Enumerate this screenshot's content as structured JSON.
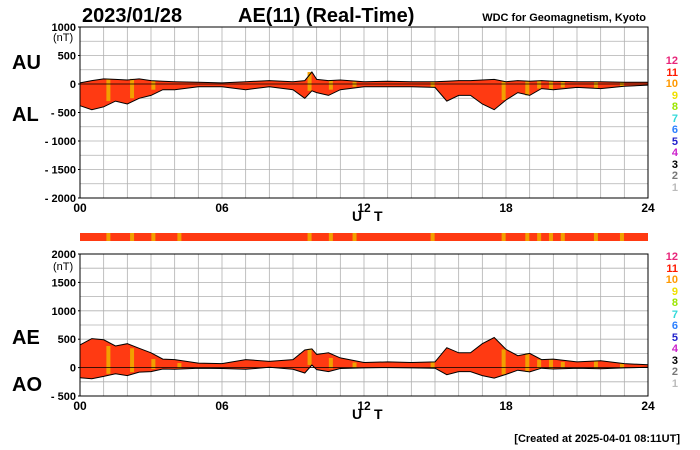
{
  "header": {
    "date": "2023/01/28",
    "title": "AE(11) (Real-Time)",
    "organization": "WDC for Geomagnetism, Kyoto",
    "created": "[Created at 2025-04-01 08:11UT]"
  },
  "labels": {
    "au": "AU",
    "al": "AL",
    "ae": "AE",
    "ao": "AO",
    "unit": "(nT)",
    "xlabel": "U T"
  },
  "legend": [
    {
      "label": "12",
      "color": "#e8267a"
    },
    {
      "label": "11",
      "color": "#ff1a00"
    },
    {
      "label": "10",
      "color": "#ff9900"
    },
    {
      "label": "9",
      "color": "#f0e000"
    },
    {
      "label": "8",
      "color": "#9be600"
    },
    {
      "label": "7",
      "color": "#33d9d9"
    },
    {
      "label": "6",
      "color": "#2a7fff"
    },
    {
      "label": "5",
      "color": "#2222cc"
    },
    {
      "label": "4",
      "color": "#cc22cc"
    },
    {
      "label": "3",
      "color": "#000000"
    },
    {
      "label": "2",
      "color": "#777777"
    },
    {
      "label": "1",
      "color": "#bbbbbb"
    }
  ],
  "colors": {
    "fill_main": "#ff3a12",
    "fill_low": "#f2a000",
    "grid": "#b0b0b0",
    "line": "#000000"
  },
  "chart_data": [
    {
      "type": "area",
      "title": "AU / AL",
      "xlabel": "U T",
      "ylabel": "(nT)",
      "xlim": [
        0,
        24
      ],
      "ylim": [
        -2000,
        1000
      ],
      "xticks": [
        "00",
        "06",
        "12",
        "18",
        "24"
      ],
      "yticks": [
        "1000",
        "500",
        "0",
        "- 500",
        "- 1000",
        "- 1500",
        "- 2000"
      ],
      "ytick_values": [
        1000,
        500,
        0,
        -500,
        -1000,
        -1500,
        -2000
      ],
      "series": [
        {
          "name": "AU",
          "x": [
            0,
            0.5,
            1,
            1.5,
            2,
            2.5,
            3,
            3.5,
            4,
            5,
            6,
            7,
            8,
            9,
            9.5,
            9.8,
            10,
            10.5,
            11,
            12,
            13,
            14,
            15,
            15.5,
            16,
            16.5,
            17,
            17.5,
            18,
            18.5,
            19,
            19.5,
            20,
            21,
            22,
            23,
            24
          ],
          "values": [
            20,
            60,
            90,
            80,
            70,
            90,
            60,
            50,
            40,
            30,
            20,
            40,
            60,
            40,
            60,
            210,
            80,
            60,
            70,
            40,
            50,
            40,
            40,
            50,
            60,
            60,
            70,
            80,
            40,
            60,
            50,
            60,
            50,
            40,
            40,
            30,
            30
          ]
        },
        {
          "name": "AL",
          "x": [
            0,
            0.5,
            1,
            1.5,
            2,
            2.5,
            3,
            3.5,
            4,
            5,
            6,
            7,
            8,
            9,
            9.5,
            9.8,
            10,
            10.5,
            11,
            12,
            13,
            14,
            15,
            15.5,
            16,
            16.5,
            17,
            17.5,
            18,
            18.5,
            19,
            19.5,
            20,
            21,
            22,
            23,
            24
          ],
          "values": [
            -380,
            -450,
            -400,
            -300,
            -350,
            -250,
            -200,
            -100,
            -100,
            -50,
            -50,
            -100,
            -50,
            -100,
            -250,
            -120,
            -150,
            -200,
            -100,
            -50,
            -50,
            -50,
            -60,
            -300,
            -200,
            -200,
            -350,
            -450,
            -280,
            -150,
            -200,
            -80,
            -100,
            -60,
            -80,
            -40,
            -20
          ]
        }
      ],
      "quality_bands": [
        1.2,
        2.2,
        3.1,
        9.7,
        10.6,
        11.6,
        14.9,
        17.9,
        18.9,
        19.4,
        19.9,
        20.4,
        21.8,
        22.9
      ]
    },
    {
      "type": "area",
      "title": "AE / AO",
      "xlabel": "U T",
      "ylabel": "(nT)",
      "xlim": [
        0,
        24
      ],
      "ylim": [
        -500,
        2000
      ],
      "xticks": [
        "00",
        "06",
        "12",
        "18",
        "24"
      ],
      "yticks": [
        "2000",
        "1500",
        "1000",
        "500",
        "0",
        "- 500"
      ],
      "ytick_values": [
        2000,
        1500,
        1000,
        500,
        0,
        -500
      ],
      "series": [
        {
          "name": "AE",
          "x": [
            0,
            0.5,
            1,
            1.5,
            2,
            2.5,
            3,
            3.5,
            4,
            5,
            6,
            7,
            8,
            9,
            9.5,
            9.8,
            10,
            10.5,
            11,
            12,
            13,
            14,
            15,
            15.5,
            16,
            16.5,
            17,
            17.5,
            18,
            18.5,
            19,
            19.5,
            20,
            21,
            22,
            23,
            24
          ],
          "values": [
            400,
            510,
            490,
            380,
            420,
            340,
            260,
            150,
            140,
            80,
            70,
            140,
            110,
            140,
            310,
            330,
            230,
            260,
            170,
            90,
            100,
            90,
            100,
            350,
            260,
            260,
            420,
            530,
            320,
            210,
            250,
            140,
            150,
            100,
            120,
            70,
            50
          ]
        },
        {
          "name": "AO",
          "x": [
            0,
            0.5,
            1,
            1.5,
            2,
            2.5,
            3,
            3.5,
            4,
            5,
            6,
            7,
            8,
            9,
            9.5,
            9.8,
            10,
            10.5,
            11,
            12,
            13,
            14,
            15,
            15.5,
            16,
            16.5,
            17,
            17.5,
            18,
            18.5,
            19,
            19.5,
            20,
            21,
            22,
            23,
            24
          ],
          "values": [
            -180,
            -195,
            -155,
            -110,
            -140,
            -80,
            -70,
            -25,
            -30,
            -10,
            -15,
            -30,
            5,
            -30,
            -95,
            45,
            -35,
            -70,
            -15,
            -5,
            0,
            -5,
            -10,
            -125,
            -70,
            -70,
            -140,
            -185,
            -120,
            -45,
            -75,
            -10,
            -25,
            -10,
            -20,
            -5,
            5
          ]
        }
      ],
      "strip_bands": [
        1.2,
        2.2,
        3.1,
        4.2,
        9.7,
        10.6,
        11.6,
        14.9,
        17.9,
        18.9,
        19.4,
        19.9,
        20.4,
        21.8,
        22.9
      ]
    }
  ]
}
